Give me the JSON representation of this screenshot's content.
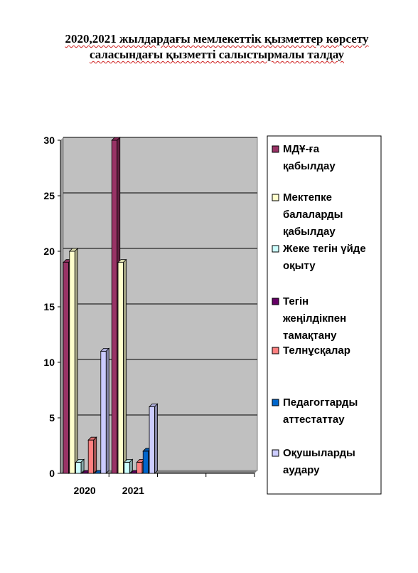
{
  "title": {
    "line1": "2020,2021 жылдардағы мемлекеттік қызметтер көрсету",
    "line2": "саласындағы қызметті салыстырмалы талдау"
  },
  "chart_data": {
    "type": "bar",
    "categories": [
      "2020",
      "2021"
    ],
    "ylim": [
      0,
      30
    ],
    "yticks": [
      0,
      5,
      10,
      15,
      20,
      25,
      30
    ],
    "grid": true,
    "legend_position": "right",
    "series": [
      {
        "name": "МДҰ-ға қабылдау",
        "legend_lines": [
          "МДҰ-ға",
          "қабылдау"
        ],
        "color": "#993366",
        "values": [
          19,
          30
        ]
      },
      {
        "name": "Мектепке балаларды қабылдау",
        "legend_lines": [
          "Мектепке",
          "балаларды",
          "қабылдау"
        ],
        "color": "#ffffcc",
        "values": [
          20,
          19
        ]
      },
      {
        "name": "Жеке тегін үйде оқыту",
        "legend_lines": [
          "Жеке тегін үйде",
          "оқыту"
        ],
        "color": "#ccffff",
        "values": [
          1,
          1
        ]
      },
      {
        "name": "Тегін жеңілдікпен тамақтану",
        "legend_lines": [
          "Тегін",
          "жеңілдікпен",
          "тамақтану"
        ],
        "color": "#660066",
        "values": [
          0,
          0
        ]
      },
      {
        "name": "Телнұсқалар",
        "legend_lines": [
          " Телнұсқалар"
        ],
        "color": "#ff8080",
        "values": [
          3,
          1
        ]
      },
      {
        "name": "Педагогтарды аттестаттау",
        "legend_lines": [
          "Педагогтарды",
          "аттестаттау"
        ],
        "color": "#0066cc",
        "values": [
          0,
          2
        ]
      },
      {
        "name": "Оқушыларды аудару",
        "legend_lines": [
          "Оқушыларды",
          "аудару"
        ],
        "color": "#ccccff",
        "values": [
          11,
          6
        ]
      }
    ]
  }
}
